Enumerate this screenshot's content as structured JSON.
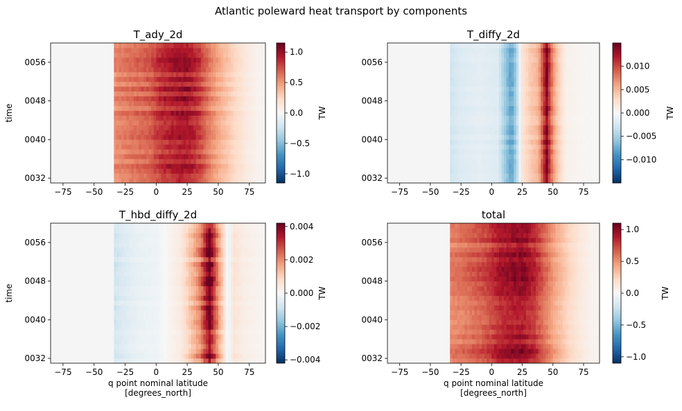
{
  "suptitle": "Atlantic poleward heat transport by components",
  "colors": {
    "axis_bg": "#f5f5f5",
    "colormap": "RdBu_r"
  },
  "chart_data": [
    {
      "type": "heatmap",
      "title": "T_ady_2d",
      "xlabel": "",
      "ylabel": "time",
      "colorbar_label": "TW",
      "xlim": [
        -85,
        88
      ],
      "xticks": [
        -75,
        -50,
        -25,
        0,
        25,
        50,
        75
      ],
      "xtick_labels": [
        "−75",
        "−50",
        "−25",
        "0",
        "25",
        "50",
        "75"
      ],
      "ylim": [
        31,
        60
      ],
      "yticks": [
        32,
        40,
        48,
        56
      ],
      "ytick_labels": [
        "0032",
        "0040",
        "0048",
        "0056"
      ],
      "clim": [
        -1.15,
        1.15
      ],
      "cticks": [
        -1.0,
        -0.5,
        0.0,
        0.5,
        1.0
      ],
      "ctick_labels": [
        "−1.0",
        "−0.5",
        "0.0",
        "0.5",
        "1.0"
      ],
      "profile": [
        [
          -34,
          0.55
        ],
        [
          -20,
          0.62
        ],
        [
          -5,
          0.7
        ],
        [
          5,
          0.85
        ],
        [
          15,
          0.92
        ],
        [
          25,
          0.95
        ],
        [
          35,
          0.8
        ],
        [
          42,
          0.6
        ],
        [
          52,
          0.4
        ],
        [
          62,
          0.25
        ],
        [
          72,
          0.12
        ],
        [
          82,
          0.04
        ]
      ],
      "zero_before": -34,
      "zero_after": 87,
      "variability": 0.12
    },
    {
      "type": "heatmap",
      "title": "T_diffy_2d",
      "xlabel": "",
      "ylabel": "",
      "colorbar_label": "TW",
      "xlim": [
        -85,
        88
      ],
      "xticks": [
        -75,
        -50,
        -25,
        0,
        25,
        50,
        75
      ],
      "xtick_labels": [
        "−75",
        "−50",
        "−25",
        "0",
        "25",
        "50",
        "75"
      ],
      "ylim": [
        31,
        60
      ],
      "yticks": [
        32,
        40,
        48,
        56
      ],
      "ytick_labels": [
        "0032",
        "0040",
        "0048",
        "0056"
      ],
      "clim": [
        -0.015,
        0.015
      ],
      "cticks": [
        -0.01,
        -0.005,
        0.0,
        0.005,
        0.01
      ],
      "ctick_labels": [
        "−0.010",
        "−0.005",
        "0.000",
        "0.005",
        "0.010"
      ],
      "profile": [
        [
          -34,
          -0.003
        ],
        [
          -25,
          -0.002
        ],
        [
          -10,
          -0.0015
        ],
        [
          5,
          -0.002
        ],
        [
          12,
          -0.006
        ],
        [
          16,
          -0.008
        ],
        [
          20,
          -0.005
        ],
        [
          25,
          0.002
        ],
        [
          32,
          0.004
        ],
        [
          38,
          0.005
        ],
        [
          42,
          0.01
        ],
        [
          45,
          0.014
        ],
        [
          48,
          0.009
        ],
        [
          52,
          0.005
        ],
        [
          56,
          0.003
        ],
        [
          60,
          0.0008
        ],
        [
          70,
          0.0004
        ],
        [
          85,
          0.0001
        ]
      ],
      "zero_before": -34,
      "zero_after": 87,
      "variability": 0.12
    },
    {
      "type": "heatmap",
      "title": "T_hbd_diffy_2d",
      "xlabel": "q point nominal latitude\n[degrees_north]",
      "ylabel": "time",
      "colorbar_label": "TW",
      "xlim": [
        -85,
        88
      ],
      "xticks": [
        -75,
        -50,
        -25,
        0,
        25,
        50,
        75
      ],
      "xtick_labels": [
        "−75",
        "−50",
        "−25",
        "0",
        "25",
        "50",
        "75"
      ],
      "ylim": [
        31,
        60
      ],
      "yticks": [
        32,
        40,
        48,
        56
      ],
      "ytick_labels": [
        "0032",
        "0040",
        "0048",
        "0056"
      ],
      "clim": [
        -0.0042,
        0.0042
      ],
      "cticks": [
        -0.004,
        -0.002,
        0.0,
        0.002,
        0.004
      ],
      "ctick_labels": [
        "−0.004",
        "−0.002",
        "0.000",
        "0.002",
        "0.004"
      ],
      "profile": [
        [
          -34,
          -0.0008
        ],
        [
          -28,
          -0.0006
        ],
        [
          -15,
          -0.0003
        ],
        [
          0,
          -0.0002
        ],
        [
          10,
          0.0001
        ],
        [
          20,
          0.0004
        ],
        [
          28,
          0.0012
        ],
        [
          35,
          0.002
        ],
        [
          40,
          0.0032
        ],
        [
          43,
          0.004
        ],
        [
          46,
          0.003
        ],
        [
          50,
          0.0018
        ],
        [
          55,
          0.0006
        ],
        [
          58,
          -0.0004
        ],
        [
          62,
          0.0006
        ],
        [
          70,
          0.0003
        ],
        [
          85,
          0.0001
        ]
      ],
      "zero_before": -34,
      "zero_after": 87,
      "variability": 0.2
    },
    {
      "type": "heatmap",
      "title": "total",
      "xlabel": "q point nominal latitude\n[degrees_north]",
      "ylabel": "",
      "colorbar_label": "TW",
      "xlim": [
        -85,
        88
      ],
      "xticks": [
        -75,
        -50,
        -25,
        0,
        25,
        50,
        75
      ],
      "xtick_labels": [
        "−75",
        "−50",
        "−25",
        "0",
        "25",
        "50",
        "75"
      ],
      "ylim": [
        31,
        60
      ],
      "yticks": [
        32,
        40,
        48,
        56
      ],
      "ytick_labels": [
        "0032",
        "0040",
        "0048",
        "0056"
      ],
      "clim": [
        -1.1,
        1.1
      ],
      "cticks": [
        -1.0,
        -0.5,
        0.0,
        0.5,
        1.0
      ],
      "ctick_labels": [
        "−1.0",
        "−0.5",
        "0.0",
        "0.5",
        "1.0"
      ],
      "profile": [
        [
          -34,
          0.55
        ],
        [
          -20,
          0.62
        ],
        [
          -5,
          0.72
        ],
        [
          5,
          0.86
        ],
        [
          15,
          0.93
        ],
        [
          25,
          0.95
        ],
        [
          35,
          0.82
        ],
        [
          42,
          0.65
        ],
        [
          52,
          0.42
        ],
        [
          62,
          0.25
        ],
        [
          72,
          0.12
        ],
        [
          82,
          0.04
        ]
      ],
      "zero_before": -34,
      "zero_after": 87,
      "variability": 0.12
    }
  ]
}
